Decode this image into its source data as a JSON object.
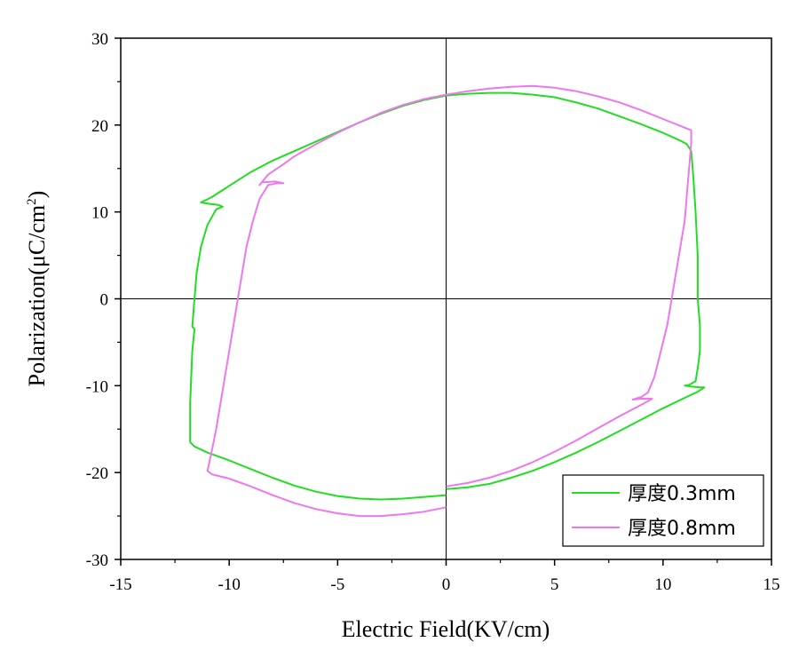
{
  "chart_data": {
    "type": "line",
    "xlabel": "Electric Field(KV/cm)",
    "ylabel_main": "Polarization(μC/cm",
    "ylabel_sup": "2",
    "ylabel_close": ")",
    "xlim": [
      -15,
      15
    ],
    "ylim": [
      -30,
      30
    ],
    "xticks": [
      -15,
      -10,
      -5,
      0,
      5,
      10,
      15
    ],
    "yticks": [
      -30,
      -20,
      -10,
      0,
      10,
      20,
      30
    ],
    "legend_position": "bottom-right",
    "grid": false,
    "series": [
      {
        "name": "厚度0.3mm",
        "color": "#22dd22",
        "points": [
          [
            0,
            -22.6
          ],
          [
            -1,
            -22.8
          ],
          [
            -2,
            -23.0
          ],
          [
            -3,
            -23.1
          ],
          [
            -4,
            -23.0
          ],
          [
            -5,
            -22.7
          ],
          [
            -6,
            -22.2
          ],
          [
            -7,
            -21.5
          ],
          [
            -8,
            -20.6
          ],
          [
            -9,
            -19.6
          ],
          [
            -10,
            -18.6
          ],
          [
            -11,
            -17.7
          ],
          [
            -11.6,
            -17.0
          ],
          [
            -11.8,
            -16.5
          ],
          [
            -11.8,
            -12
          ],
          [
            -11.7,
            -6
          ],
          [
            -11.6,
            -3.5
          ],
          [
            -11.7,
            -3.2
          ],
          [
            -11.6,
            0
          ],
          [
            -11.5,
            3
          ],
          [
            -11.3,
            6
          ],
          [
            -11.0,
            8.5
          ],
          [
            -10.6,
            10.3
          ],
          [
            -10.3,
            10.6
          ],
          [
            -10.5,
            10.8
          ],
          [
            -10.8,
            10.9
          ],
          [
            -11.1,
            11.0
          ],
          [
            -11.3,
            11.1
          ],
          [
            -10.8,
            11.7
          ],
          [
            -10,
            13.0
          ],
          [
            -9,
            14.6
          ],
          [
            -8,
            15.9
          ],
          [
            -7,
            17.0
          ],
          [
            -6,
            18.1
          ],
          [
            -5,
            19.2
          ],
          [
            -4,
            20.3
          ],
          [
            -3,
            21.3
          ],
          [
            -2,
            22.2
          ],
          [
            -1,
            22.9
          ],
          [
            0,
            23.4
          ],
          [
            1,
            23.6
          ],
          [
            2,
            23.7
          ],
          [
            3,
            23.7
          ],
          [
            4,
            23.5
          ],
          [
            5,
            23.2
          ],
          [
            6,
            22.6
          ],
          [
            7,
            21.9
          ],
          [
            8,
            21.0
          ],
          [
            9,
            20.1
          ],
          [
            10,
            19.1
          ],
          [
            10.8,
            18.2
          ],
          [
            11.1,
            17.8
          ],
          [
            11.3,
            17.0
          ],
          [
            11.4,
            14
          ],
          [
            11.5,
            10
          ],
          [
            11.6,
            5
          ],
          [
            11.6,
            0
          ],
          [
            11.7,
            -3
          ],
          [
            11.7,
            -6
          ],
          [
            11.6,
            -8
          ],
          [
            11.5,
            -9.5
          ],
          [
            11.2,
            -9.9
          ],
          [
            11.0,
            -10.0
          ],
          [
            11.3,
            -10.1
          ],
          [
            11.7,
            -10.2
          ],
          [
            11.9,
            -10.2
          ],
          [
            11.6,
            -10.7
          ],
          [
            11,
            -11.4
          ],
          [
            10,
            -12.6
          ],
          [
            9,
            -13.9
          ],
          [
            8,
            -15.2
          ],
          [
            7,
            -16.5
          ],
          [
            6,
            -17.7
          ],
          [
            5,
            -18.8
          ],
          [
            4,
            -19.8
          ],
          [
            3,
            -20.6
          ],
          [
            2,
            -21.3
          ],
          [
            1,
            -21.7
          ],
          [
            0,
            -21.9
          ]
        ]
      },
      {
        "name": "厚度0.8mm",
        "color": "#ee77ee",
        "points": [
          [
            0,
            -24.0
          ],
          [
            -1,
            -24.5
          ],
          [
            -2,
            -24.8
          ],
          [
            -3,
            -25.0
          ],
          [
            -4,
            -25.0
          ],
          [
            -5,
            -24.7
          ],
          [
            -6,
            -24.2
          ],
          [
            -7,
            -23.5
          ],
          [
            -8,
            -22.6
          ],
          [
            -9,
            -21.6
          ],
          [
            -10,
            -20.7
          ],
          [
            -10.8,
            -20.2
          ],
          [
            -11.0,
            -19.8
          ],
          [
            -10.8,
            -17.5
          ],
          [
            -10.6,
            -15
          ],
          [
            -10.4,
            -12
          ],
          [
            -10.2,
            -9
          ],
          [
            -10.0,
            -6
          ],
          [
            -9.8,
            -3
          ],
          [
            -9.6,
            0
          ],
          [
            -9.4,
            3
          ],
          [
            -9.2,
            6
          ],
          [
            -8.9,
            9
          ],
          [
            -8.6,
            11.5
          ],
          [
            -8.2,
            13.1
          ],
          [
            -7.8,
            13.3
          ],
          [
            -7.5,
            13.3
          ],
          [
            -7.9,
            13.5
          ],
          [
            -8.5,
            13.4
          ],
          [
            -8.6,
            13.1
          ],
          [
            -8.2,
            14.3
          ],
          [
            -7.5,
            15.5
          ],
          [
            -7,
            16.4
          ],
          [
            -6,
            17.8
          ],
          [
            -5,
            19.1
          ],
          [
            -4,
            20.3
          ],
          [
            -3,
            21.4
          ],
          [
            -2,
            22.3
          ],
          [
            -1,
            23.0
          ],
          [
            0,
            23.5
          ],
          [
            1,
            23.9
          ],
          [
            2,
            24.2
          ],
          [
            3,
            24.4
          ],
          [
            4,
            24.5
          ],
          [
            5,
            24.3
          ],
          [
            6,
            23.9
          ],
          [
            7,
            23.3
          ],
          [
            8,
            22.6
          ],
          [
            9,
            21.7
          ],
          [
            10,
            20.7
          ],
          [
            11,
            19.7
          ],
          [
            11.3,
            19.4
          ],
          [
            11.3,
            18
          ],
          [
            11.2,
            15
          ],
          [
            11.1,
            12
          ],
          [
            11.0,
            9
          ],
          [
            10.8,
            6
          ],
          [
            10.6,
            3
          ],
          [
            10.4,
            0
          ],
          [
            10.2,
            -3
          ],
          [
            9.9,
            -6
          ],
          [
            9.6,
            -9
          ],
          [
            9.3,
            -10.8
          ],
          [
            9.0,
            -11.3
          ],
          [
            8.6,
            -11.6
          ],
          [
            9.0,
            -11.5
          ],
          [
            9.5,
            -11.5
          ],
          [
            9.3,
            -11.8
          ],
          [
            9,
            -12.2
          ],
          [
            8,
            -13.5
          ],
          [
            7,
            -14.9
          ],
          [
            6,
            -16.3
          ],
          [
            5,
            -17.6
          ],
          [
            4,
            -18.8
          ],
          [
            3,
            -19.8
          ],
          [
            2,
            -20.6
          ],
          [
            1,
            -21.2
          ],
          [
            0,
            -21.6
          ]
        ]
      }
    ]
  }
}
